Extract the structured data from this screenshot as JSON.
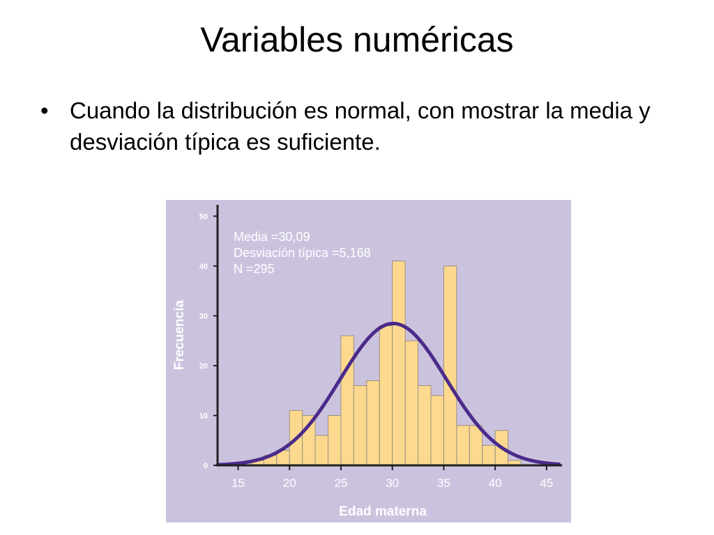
{
  "slide": {
    "title": "Variables numéricas",
    "bullet": "Cuando la distribución es normal, con mostrar la media y desviación típica es suficiente."
  },
  "chart_data": {
    "type": "bar",
    "subtype": "histogram",
    "xlabel": "Edad materna",
    "ylabel": "Frecuencia",
    "xlim": [
      13,
      46.5
    ],
    "ylim": [
      0,
      52
    ],
    "xticks": [
      15,
      20,
      25,
      30,
      35,
      40,
      45
    ],
    "yticks": [
      0,
      10,
      20,
      30,
      40,
      50
    ],
    "bin_width": 1.25,
    "bin_start": [
      16.25,
      17.5,
      18.75,
      20,
      21.25,
      22.5,
      23.75,
      25,
      26.25,
      27.5,
      28.75,
      30,
      31.25,
      32.5,
      33.75,
      35,
      36.25,
      37.5,
      38.75,
      40,
      41.25
    ],
    "values": [
      1,
      2,
      3,
      11,
      10,
      6,
      10,
      26,
      16,
      17,
      28,
      41,
      25,
      16,
      14,
      40,
      8,
      8,
      4,
      7,
      1
    ],
    "normal_curve": {
      "mean": 30.09,
      "sd": 5.168,
      "n": 295
    },
    "annotations": [
      "Media =30,09",
      "Desviación típica =5,168",
      "N =295"
    ],
    "colors": {
      "background": "#cbc3de",
      "bar_fill": "#fdd98f",
      "bar_stroke": "#9a8f80",
      "curve": "#4b2a8a",
      "axis": "#202020",
      "text": "#ffffff"
    },
    "grid": false
  }
}
